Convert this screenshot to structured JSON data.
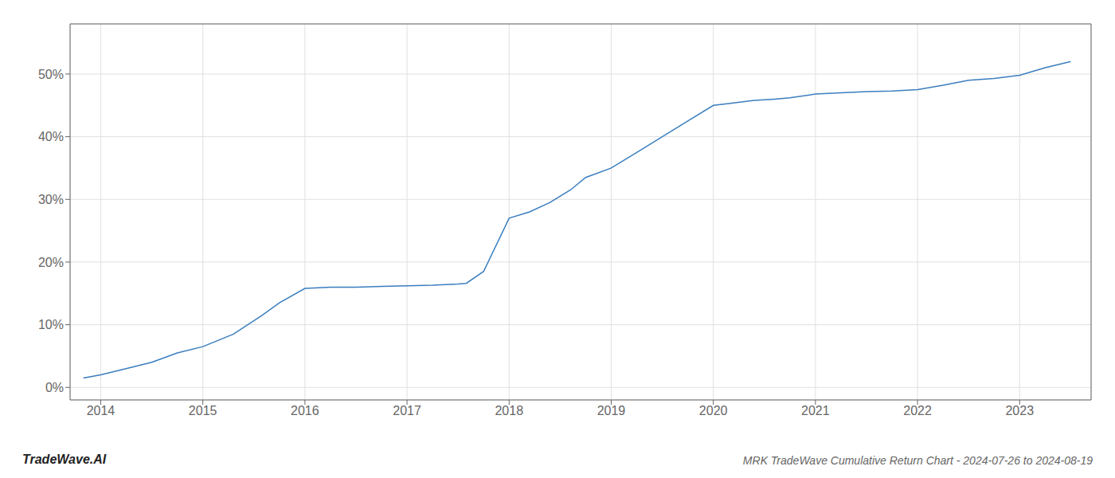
{
  "chart_data": {
    "type": "line",
    "title": "MRK TradeWave Cumulative Return Chart - 2024-07-26 to 2024-08-19",
    "annotations": [
      "TradeWave.AI"
    ],
    "color": "#3a7ebf",
    "grid": true,
    "x": [
      2013.83,
      2014.0,
      2014.2,
      2014.5,
      2014.75,
      2015.0,
      2015.3,
      2015.58,
      2015.75,
      2016.0,
      2016.25,
      2016.5,
      2016.75,
      2017.0,
      2017.25,
      2017.5,
      2017.58,
      2017.75,
      2018.0,
      2018.2,
      2018.4,
      2018.6,
      2018.75,
      2019.0,
      2019.25,
      2019.5,
      2019.75,
      2020.0,
      2020.15,
      2020.4,
      2020.6,
      2020.75,
      2021.0,
      2021.25,
      2021.5,
      2021.75,
      2022.0,
      2022.25,
      2022.5,
      2022.75,
      2023.0,
      2023.25,
      2023.5
    ],
    "values": [
      1.5,
      2.0,
      2.8,
      4.0,
      5.5,
      6.5,
      8.5,
      11.5,
      13.5,
      15.8,
      16.0,
      16.0,
      16.1,
      16.2,
      16.3,
      16.5,
      16.6,
      18.5,
      27.0,
      28.0,
      29.5,
      31.5,
      33.5,
      35.0,
      37.5,
      40.0,
      42.5,
      45.0,
      45.3,
      45.8,
      46.0,
      46.2,
      46.8,
      47.0,
      47.2,
      47.3,
      47.5,
      48.2,
      49.0,
      49.3,
      49.8,
      51.0,
      52.0
    ],
    "xlim": [
      2013.7,
      2023.7
    ],
    "ylim": [
      -2,
      58
    ],
    "xticks": [
      2014,
      2015,
      2016,
      2017,
      2018,
      2019,
      2020,
      2021,
      2022,
      2023
    ],
    "yticks": [
      {
        "value": 0,
        "label": "0%"
      },
      {
        "value": 10,
        "label": "10%"
      },
      {
        "value": 20,
        "label": "20%"
      },
      {
        "value": 30,
        "label": "30%"
      },
      {
        "value": 40,
        "label": "40%"
      },
      {
        "value": 50,
        "label": "50%"
      }
    ]
  }
}
